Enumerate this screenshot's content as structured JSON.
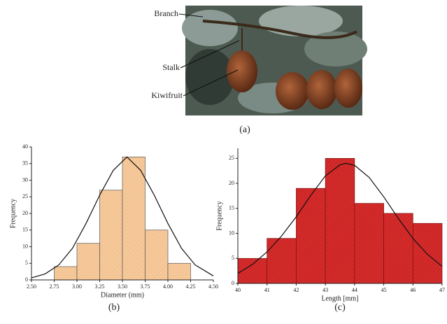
{
  "photo": {
    "labels": [
      "Branch",
      "Stalk",
      "Kiwifruit"
    ],
    "caption": "(a)"
  },
  "chart_data": [
    {
      "type": "histogram",
      "caption": "(b)",
      "xlabel": "Diameter (mm)",
      "ylabel": "Frequency",
      "color": "#f6c99b",
      "edge": "#555555",
      "bins": [
        2.75,
        3.0,
        3.25,
        3.5,
        3.75,
        4.0,
        4.25
      ],
      "values": [
        4,
        11,
        27,
        37,
        15,
        5
      ],
      "xlim": [
        2.5,
        4.5
      ],
      "ylim": [
        0,
        40
      ],
      "xticks": [
        {
          "value": 2.5,
          "label": "2.50"
        },
        {
          "value": 2.75,
          "label": "2.75"
        },
        {
          "value": 3.0,
          "label": "3.00"
        },
        {
          "value": 3.25,
          "label": "3.25"
        },
        {
          "value": 3.5,
          "label": "3.50"
        },
        {
          "value": 3.75,
          "label": "3.75"
        },
        {
          "value": 4.0,
          "label": "4.00"
        },
        {
          "value": 4.25,
          "label": "4.25"
        },
        {
          "value": 4.5,
          "label": "4.50"
        }
      ],
      "yticks": [
        0,
        5,
        10,
        15,
        20,
        25,
        30,
        35,
        40
      ],
      "curve": {
        "x": [
          2.5,
          2.65,
          2.8,
          2.95,
          3.1,
          3.25,
          3.4,
          3.55,
          3.7,
          3.85,
          4.0,
          4.15,
          4.3,
          4.5
        ],
        "values": [
          0.6,
          1.8,
          4.5,
          9.5,
          17,
          25.5,
          33,
          37,
          33,
          25.5,
          17,
          9.5,
          4.5,
          1.2
        ]
      }
    },
    {
      "type": "histogram",
      "caption": "(c)",
      "xlabel": "Length [mm]",
      "ylabel": "Frequency",
      "color": "#d42a2a",
      "edge": "#7a1010",
      "bins": [
        40,
        41,
        42,
        43,
        44,
        45,
        46,
        47
      ],
      "values": [
        5,
        9,
        19,
        25,
        16,
        14,
        12
      ],
      "xlim": [
        40,
        47
      ],
      "ylim": [
        0,
        27
      ],
      "xticks": [
        40,
        41,
        42,
        43,
        44,
        45,
        46,
        47
      ],
      "yticks": [
        0,
        5,
        10,
        15,
        20,
        25
      ],
      "curve": {
        "x": [
          40,
          40.5,
          41,
          41.5,
          42,
          42.5,
          43,
          43.5,
          43.7,
          44,
          44.5,
          45,
          45.5,
          46,
          46.5,
          47
        ],
        "values": [
          2,
          3.8,
          6.3,
          9.5,
          13.3,
          17.6,
          21.5,
          23.7,
          24,
          23.6,
          21.2,
          17.3,
          13,
          9,
          5.8,
          3.4
        ]
      }
    }
  ]
}
